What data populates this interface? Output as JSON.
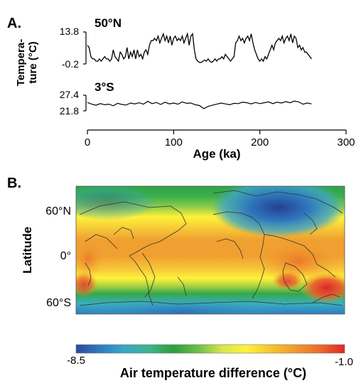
{
  "panel_a_label": "A.",
  "panel_b_label": "B.",
  "chart_data": [
    {
      "type": "line",
      "panel": "A",
      "ylabel": "Tempera-ture (°C)",
      "xlabel": "Age (ka)",
      "xlim": [
        0,
        300
      ],
      "x_ticks": [
        "0",
        "100",
        "200",
        "300"
      ],
      "series": [
        {
          "name": "50°N",
          "y_ticks": [
            "13.8",
            "-0.2"
          ],
          "ylim": [
            -0.2,
            13.8
          ],
          "x": [
            0,
            2,
            4,
            6,
            8,
            10,
            12,
            14,
            16,
            18,
            20,
            22,
            24,
            26,
            28,
            30,
            32,
            34,
            36,
            38,
            40,
            42,
            44,
            46,
            48,
            50,
            52,
            54,
            56,
            58,
            60,
            62,
            64,
            66,
            68,
            70,
            72,
            74,
            76,
            78,
            80,
            82,
            84,
            86,
            88,
            90,
            92,
            94,
            96,
            98,
            100,
            102,
            104,
            106,
            108,
            110,
            112,
            114,
            116,
            118,
            120,
            122,
            124,
            126,
            128,
            130,
            132,
            134,
            136,
            138,
            140,
            142,
            144,
            146,
            148,
            150,
            152,
            154,
            156,
            158,
            160,
            162,
            164,
            166,
            168,
            170,
            172,
            174,
            176,
            178,
            180,
            182,
            184,
            186,
            188,
            190,
            192,
            194,
            196,
            198,
            200,
            202,
            204,
            206,
            208,
            210,
            212,
            214,
            216,
            218,
            220,
            222,
            224,
            226,
            228,
            230,
            232,
            234,
            236,
            238,
            240,
            242,
            244,
            246,
            248,
            250,
            252,
            254,
            256,
            258,
            260
          ],
          "values": [
            8,
            7,
            3,
            2,
            2,
            1,
            1,
            2,
            1,
            2,
            3,
            2,
            2,
            1,
            2,
            6,
            3,
            2,
            1,
            5,
            4,
            2,
            3,
            7,
            2,
            5,
            3,
            6,
            2,
            6,
            3,
            4,
            2,
            5,
            6,
            4,
            8,
            10,
            10,
            11,
            10,
            12,
            9,
            11,
            13,
            10,
            12,
            9,
            12,
            8,
            11,
            12,
            10,
            11,
            10,
            12,
            9,
            11,
            13,
            8,
            12,
            13,
            6,
            2,
            1,
            0.5,
            0.5,
            1,
            1.5,
            1,
            2,
            1,
            0.5,
            1,
            2,
            1,
            2,
            2,
            3,
            2,
            4,
            3,
            2,
            1,
            2,
            3,
            9,
            10,
            12,
            10,
            11,
            9,
            11,
            12,
            10,
            13,
            9,
            6,
            4,
            2,
            1,
            2,
            1,
            3,
            2,
            4,
            6,
            8,
            6,
            9,
            10,
            11,
            10,
            12,
            9,
            11,
            12,
            10,
            13,
            9,
            12,
            11,
            7,
            8,
            6,
            7,
            5,
            5,
            4,
            3,
            2
          ]
        },
        {
          "name": "3°S",
          "y_ticks": [
            "27.4",
            "21.8"
          ],
          "ylim": [
            21.8,
            27.4
          ],
          "x": [
            0,
            5,
            10,
            15,
            20,
            25,
            30,
            35,
            40,
            45,
            50,
            55,
            60,
            65,
            70,
            75,
            80,
            85,
            90,
            95,
            100,
            105,
            110,
            115,
            120,
            125,
            130,
            135,
            140,
            145,
            150,
            155,
            160,
            165,
            170,
            175,
            180,
            185,
            190,
            195,
            200,
            205,
            210,
            215,
            220,
            225,
            230,
            235,
            240,
            245,
            250,
            255,
            260
          ],
          "values": [
            24.8,
            24.2,
            23.8,
            24.4,
            24,
            24.2,
            23.6,
            24.5,
            24.1,
            23.9,
            24.6,
            24.3,
            24.7,
            24.2,
            25.2,
            24.4,
            24.8,
            24.1,
            24.9,
            24.3,
            24.6,
            24.2,
            25.0,
            24.5,
            24.6,
            24.0,
            23.7,
            22.6,
            23.4,
            23.8,
            24.2,
            24.6,
            24.3,
            24.0,
            24.5,
            24.4,
            24.9,
            24.7,
            24.3,
            24.8,
            24.4,
            24.7,
            25.0,
            24.4,
            24.9,
            24.6,
            25.1,
            24.7,
            25.3,
            25.0,
            24.2,
            24.6,
            24.3
          ]
        }
      ]
    },
    {
      "type": "heatmap",
      "panel": "B",
      "ylabel": "Latitude",
      "y_ticks": [
        "60°N",
        "0°",
        "60°S"
      ],
      "colorbar": {
        "min_label": "-8.5",
        "max_label": "-1.0",
        "min": -8.5,
        "max": -1.0,
        "label": "Air temperature difference (°C)",
        "colors": [
          "#2c4a9a",
          "#2f7cc0",
          "#3aa7c9",
          "#3fb38a",
          "#2e9e3a",
          "#6cc04a",
          "#d9e64a",
          "#fff23a",
          "#f7c330",
          "#f09a2c",
          "#ec6a2a",
          "#e0262a"
        ]
      }
    }
  ]
}
